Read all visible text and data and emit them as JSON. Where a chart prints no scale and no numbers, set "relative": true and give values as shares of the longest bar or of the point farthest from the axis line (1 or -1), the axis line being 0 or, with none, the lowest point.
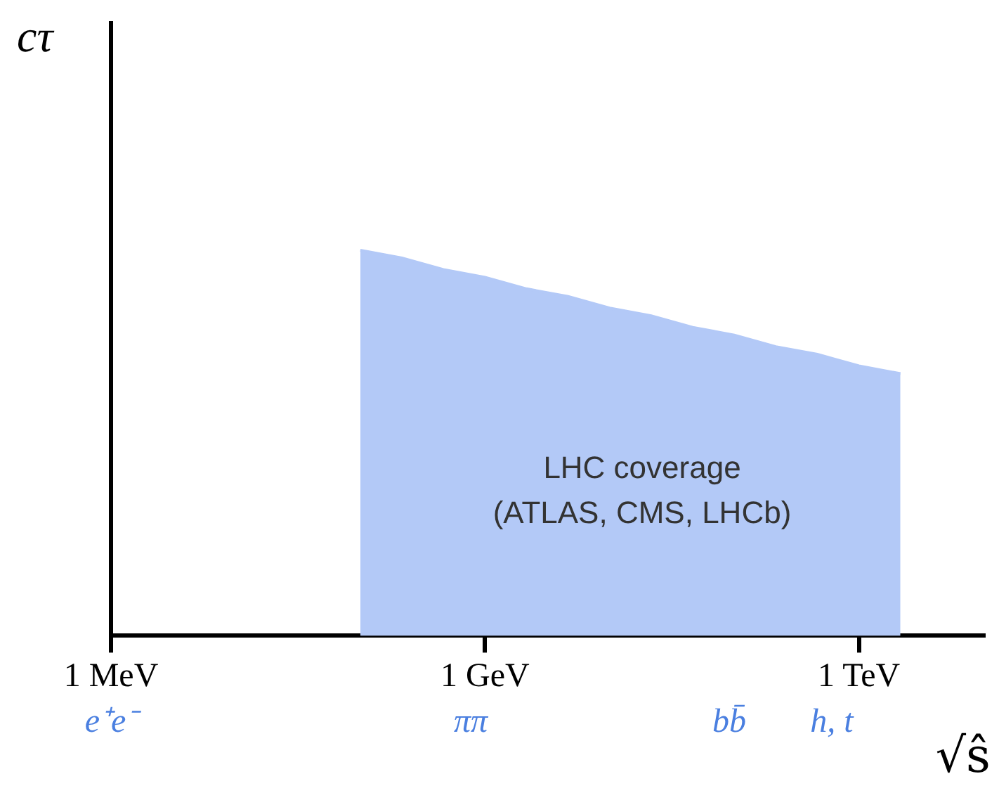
{
  "chart_data": {
    "type": "area",
    "relative": true,
    "xlabel": "√ŝ",
    "ylabel": "cτ",
    "categories": [
      "1 MeV",
      null,
      null,
      null,
      null,
      null,
      null,
      null,
      null,
      "1 GeV",
      null,
      null,
      null,
      null,
      null,
      null,
      null,
      null,
      "1 TeV",
      null,
      null,
      null
    ],
    "series": [
      {
        "color": "#b3c9f7",
        "values": [
          null,
          null,
          null,
          null,
          null,
          null,
          1,
          0.98,
          0.95,
          0.93,
          0.9,
          0.88,
          0.85,
          0.83,
          0.8,
          0.78,
          0.75,
          0.73,
          0.7,
          0.68,
          null,
          null
        ]
      }
    ],
    "annotations": [
      "LHC coverage\n(ATLAS, CMS, LHCb)",
      "e⁺e⁻",
      "ππ",
      "bb̄",
      "h, t"
    ],
    "grid": false,
    "legend": false
  }
}
